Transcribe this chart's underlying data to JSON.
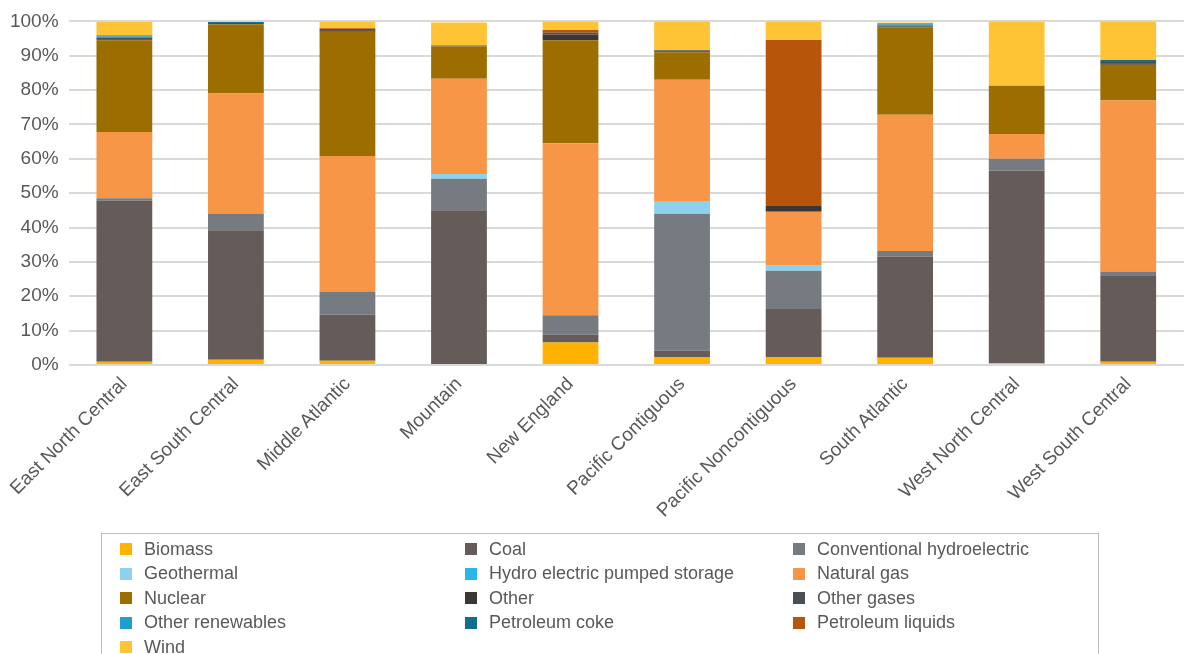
{
  "chart_data": {
    "type": "bar",
    "stacked": true,
    "grid": "y",
    "legend": "bottom",
    "categories": [
      "East North Central",
      "East South Central",
      "Middle Atlantic",
      "Mountain",
      "New England",
      "Pacific Contiguous",
      "Pacific Noncontiguous",
      "South Atlantic",
      "West North Central",
      "West South Central"
    ],
    "ylim": [
      0,
      100
    ],
    "yticks": [
      {
        "value": 0,
        "label": "0%"
      },
      {
        "value": 10,
        "label": "10%"
      },
      {
        "value": 20,
        "label": "20%"
      },
      {
        "value": 30,
        "label": "30%"
      },
      {
        "value": 40,
        "label": "40%"
      },
      {
        "value": 50,
        "label": "50%"
      },
      {
        "value": 60,
        "label": "60%"
      },
      {
        "value": 70,
        "label": "70%"
      },
      {
        "value": 80,
        "label": "80%"
      },
      {
        "value": 90,
        "label": "90%"
      },
      {
        "value": 100,
        "label": "100%"
      }
    ],
    "series": [
      {
        "name": "Biomass",
        "color": "#ffb300",
        "values": [
          0.9,
          1.5,
          1.2,
          null,
          6.5,
          2.3,
          2.3,
          2.1,
          0.5,
          0.9
        ]
      },
      {
        "name": "Coal",
        "color": "#655b58",
        "values": [
          47,
          37.7,
          13.4,
          45,
          2.3,
          1.8,
          14,
          29.5,
          56.1,
          25.2
        ]
      },
      {
        "name": "Conventional hydroelectric",
        "color": "#767b82",
        "values": [
          0.6,
          4.9,
          6.8,
          9.2,
          5.7,
          39.9,
          11.1,
          1.6,
          3.4,
          1.1
        ]
      },
      {
        "name": "Geothermal",
        "color": "#8dd1ee",
        "values": [
          0,
          0,
          0,
          1.4,
          0,
          3.5,
          1.7,
          0,
          0,
          0
        ]
      },
      {
        "name": "Hydro electric pumped storage",
        "color": "#29b6e8",
        "values": [
          0,
          0,
          0,
          0,
          0,
          0,
          0,
          0,
          0,
          0
        ]
      },
      {
        "name": "Natural gas",
        "color": "#f79646",
        "values": [
          19.3,
          34.9,
          39.4,
          27.7,
          50,
          35.5,
          15.5,
          39.6,
          7.2,
          49.8
        ]
      },
      {
        "name": "Nuclear",
        "color": "#9c6e00",
        "values": [
          26.7,
          20.2,
          36.2,
          9.4,
          30,
          8,
          0,
          25.4,
          14.1,
          10.4
        ]
      },
      {
        "name": "Other",
        "color": "#3d3734",
        "values": [
          0.3,
          0,
          0.4,
          0,
          1.7,
          0.3,
          1.7,
          0.3,
          0,
          0.4
        ]
      },
      {
        "name": "Other gases",
        "color": "#4b4f54",
        "values": [
          0.5,
          0.3,
          0.4,
          0.3,
          0.5,
          0.3,
          0,
          0.3,
          0,
          0.4
        ]
      },
      {
        "name": "Other renewables",
        "color": "#1f9fd0",
        "values": [
          0.3,
          0,
          0,
          0,
          0,
          0,
          0,
          0.3,
          0,
          0
        ]
      },
      {
        "name": "Petroleum coke",
        "color": "#116e91",
        "values": [
          0.3,
          0.3,
          0,
          0,
          0,
          0,
          0,
          0.3,
          0,
          0.6
        ]
      },
      {
        "name": "Petroleum liquids",
        "color": "#b7560a",
        "values": [
          null,
          0,
          0.2,
          0,
          0.8,
          0,
          48.3,
          null,
          0,
          0
        ]
      },
      {
        "name": "Wind",
        "color": "#ffc435",
        "values": [
          3.9,
          null,
          2,
          6.7,
          2.5,
          8.4,
          5.4,
          0.3,
          18.7,
          11.2
        ]
      }
    ]
  }
}
